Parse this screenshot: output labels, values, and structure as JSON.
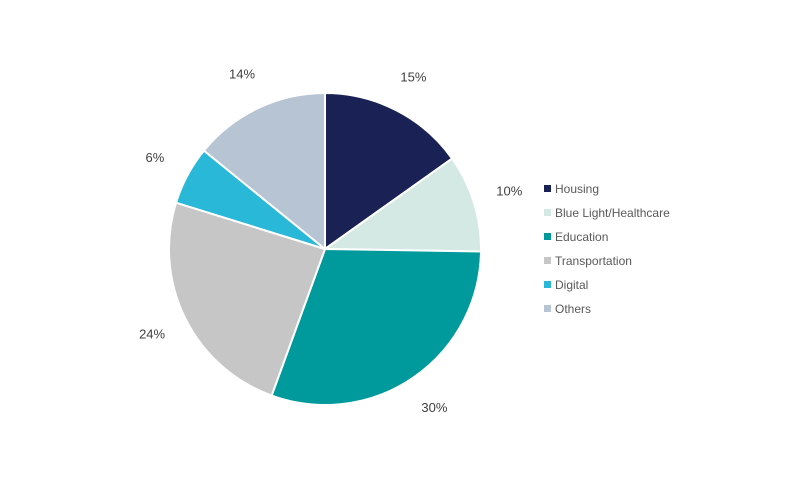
{
  "chart_data": {
    "type": "pie",
    "title": "",
    "start_angle_deg": 0,
    "direction": "clockwise",
    "legend_position": "right",
    "slices": [
      {
        "name": "Housing",
        "value": 15,
        "label": "15%",
        "color": "#1a2155"
      },
      {
        "name": "Blue Light/Healthcare",
        "value": 10,
        "label": "10%",
        "color": "#d4e8e4"
      },
      {
        "name": "Education",
        "value": 30,
        "label": "30%",
        "color": "#009a9c"
      },
      {
        "name": "Transportation",
        "value": 24,
        "label": "24%",
        "color": "#c6c6c6"
      },
      {
        "name": "Digital",
        "value": 6,
        "label": "6%",
        "color": "#29b8d8"
      },
      {
        "name": "Others",
        "value": 14,
        "label": "14%",
        "color": "#b7c4d4"
      }
    ]
  }
}
